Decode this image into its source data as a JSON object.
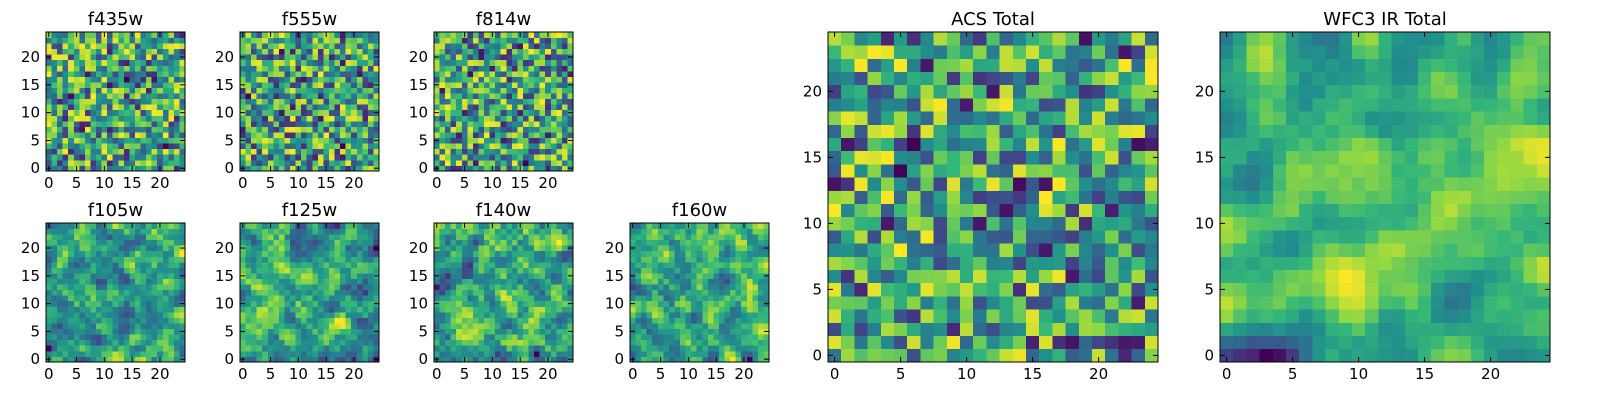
{
  "chart_data": [
    {
      "type": "heatmap",
      "title": "f435w",
      "grid_size": 25,
      "colormap": "viridis",
      "xticks": [
        "0",
        "5",
        "10",
        "15",
        "20"
      ],
      "yticks": [
        "0",
        "5",
        "10",
        "15",
        "20"
      ],
      "xlim": [
        -0.5,
        24.5
      ],
      "ylim": [
        -0.5,
        24.5
      ],
      "smoothness": 0,
      "seed": 11
    },
    {
      "type": "heatmap",
      "title": "f555w",
      "grid_size": 25,
      "colormap": "viridis",
      "xticks": [
        "0",
        "5",
        "10",
        "15",
        "20"
      ],
      "yticks": [
        "0",
        "5",
        "10",
        "15",
        "20"
      ],
      "xlim": [
        -0.5,
        24.5
      ],
      "ylim": [
        -0.5,
        24.5
      ],
      "smoothness": 0,
      "seed": 23
    },
    {
      "type": "heatmap",
      "title": "f814w",
      "grid_size": 25,
      "colormap": "viridis",
      "xticks": [
        "0",
        "5",
        "10",
        "15",
        "20"
      ],
      "yticks": [
        "0",
        "5",
        "10",
        "15",
        "20"
      ],
      "xlim": [
        -0.5,
        24.5
      ],
      "ylim": [
        -0.5,
        24.5
      ],
      "smoothness": 0,
      "seed": 37
    },
    {
      "type": "heatmap",
      "title": "f105w",
      "grid_size": 25,
      "colormap": "viridis",
      "xticks": [
        "0",
        "5",
        "10",
        "15",
        "20"
      ],
      "yticks": [
        "0",
        "5",
        "10",
        "15",
        "20"
      ],
      "xlim": [
        -0.5,
        24.5
      ],
      "ylim": [
        -0.5,
        24.5
      ],
      "smoothness": 1,
      "seed": 41
    },
    {
      "type": "heatmap",
      "title": "f125w",
      "grid_size": 25,
      "colormap": "viridis",
      "xticks": [
        "0",
        "5",
        "10",
        "15",
        "20"
      ],
      "yticks": [
        "0",
        "5",
        "10",
        "15",
        "20"
      ],
      "xlim": [
        -0.5,
        24.5
      ],
      "ylim": [
        -0.5,
        24.5
      ],
      "smoothness": 1,
      "seed": 53
    },
    {
      "type": "heatmap",
      "title": "f140w",
      "grid_size": 25,
      "colormap": "viridis",
      "xticks": [
        "0",
        "5",
        "10",
        "15",
        "20"
      ],
      "yticks": [
        "0",
        "5",
        "10",
        "15",
        "20"
      ],
      "xlim": [
        -0.5,
        24.5
      ],
      "ylim": [
        -0.5,
        24.5
      ],
      "smoothness": 1,
      "seed": 67
    },
    {
      "type": "heatmap",
      "title": "f160w",
      "grid_size": 25,
      "colormap": "viridis",
      "xticks": [
        "0",
        "5",
        "10",
        "15",
        "20"
      ],
      "yticks": [
        "0",
        "5",
        "10",
        "15",
        "20"
      ],
      "xlim": [
        -0.5,
        24.5
      ],
      "ylim": [
        -0.5,
        24.5
      ],
      "smoothness": 1,
      "seed": 79
    },
    {
      "type": "heatmap",
      "title": "ACS Total",
      "grid_size": 25,
      "colormap": "viridis",
      "xticks": [
        "0",
        "5",
        "10",
        "15",
        "20"
      ],
      "yticks": [
        "0",
        "5",
        "10",
        "15",
        "20"
      ],
      "xlim": [
        -0.5,
        24.5
      ],
      "ylim": [
        -0.5,
        24.5
      ],
      "smoothness": 0,
      "seed": 83
    },
    {
      "type": "heatmap",
      "title": "WFC3 IR Total",
      "grid_size": 25,
      "colormap": "viridis",
      "xticks": [
        "0",
        "5",
        "10",
        "15",
        "20"
      ],
      "yticks": [
        "0",
        "5",
        "10",
        "15",
        "20"
      ],
      "xlim": [
        -0.5,
        24.5
      ],
      "ylim": [
        -0.5,
        24.5
      ],
      "smoothness": 2,
      "seed": 97
    }
  ]
}
